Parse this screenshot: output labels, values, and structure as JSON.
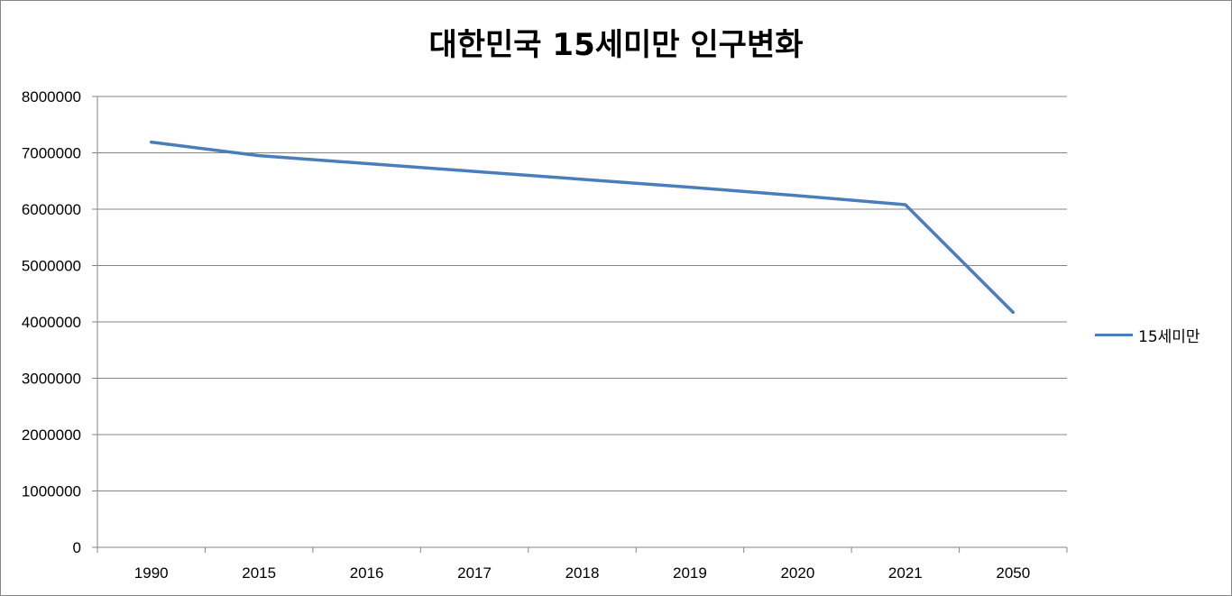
{
  "chart_data": {
    "type": "line",
    "title": "대한민국 15세미만 인구변화",
    "xlabel": "",
    "ylabel": "",
    "categories": [
      "1990",
      "2015",
      "2016",
      "2017",
      "2018",
      "2019",
      "2020",
      "2021",
      "2050"
    ],
    "series": [
      {
        "name": "15세미만",
        "color": "#4a7ebb",
        "values": [
          7190000,
          6950000,
          6810000,
          6670000,
          6530000,
          6390000,
          6240000,
          6080000,
          4170000
        ]
      }
    ],
    "ylim": [
      0,
      8000000
    ],
    "yticks": [
      "0",
      "1000000",
      "2000000",
      "3000000",
      "4000000",
      "5000000",
      "6000000",
      "7000000",
      "8000000"
    ],
    "grid": "horizontal",
    "legend_position": "right"
  }
}
